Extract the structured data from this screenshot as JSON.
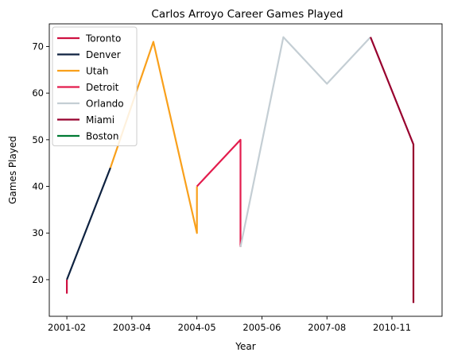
{
  "chart_data": {
    "type": "line",
    "title": "Carlos Arroyo Career Games Played",
    "xlabel": "Year",
    "ylabel": "Games Played",
    "x_ticks": [
      "2001-02",
      "2003-04",
      "2004-05",
      "2005-06",
      "2007-08",
      "2010-11"
    ],
    "y_ticks": [
      20,
      30,
      40,
      50,
      60,
      70
    ],
    "xlim": [
      -0.27,
      5.77
    ],
    "ylim": [
      12.15,
      74.85
    ],
    "grid": false,
    "legend_position": "top-left",
    "series": [
      {
        "name": "Toronto",
        "color": "#CE1141",
        "points": [
          [
            0,
            17
          ],
          [
            0,
            20
          ]
        ]
      },
      {
        "name": "Denver",
        "color": "#0E2240",
        "points": [
          [
            0,
            20
          ],
          [
            0.67,
            44
          ]
        ]
      },
      {
        "name": "Utah",
        "color": "#F9A01B",
        "points": [
          [
            0.67,
            44
          ],
          [
            1.33,
            71
          ],
          [
            2,
            30
          ],
          [
            2,
            40
          ]
        ]
      },
      {
        "name": "Detroit",
        "color": "#E31C4D",
        "points": [
          [
            2,
            40
          ],
          [
            2.67,
            50
          ],
          [
            2.67,
            27
          ]
        ]
      },
      {
        "name": "Orlando",
        "color": "#C4CED4",
        "points": [
          [
            2.67,
            27
          ],
          [
            3.33,
            72
          ],
          [
            4,
            62
          ],
          [
            4.67,
            72
          ]
        ]
      },
      {
        "name": "Miami",
        "color": "#98002E",
        "points": [
          [
            4.67,
            72
          ],
          [
            5.33,
            49
          ],
          [
            5.33,
            15
          ]
        ]
      },
      {
        "name": "Boston",
        "color": "#007A33",
        "points": []
      }
    ]
  }
}
